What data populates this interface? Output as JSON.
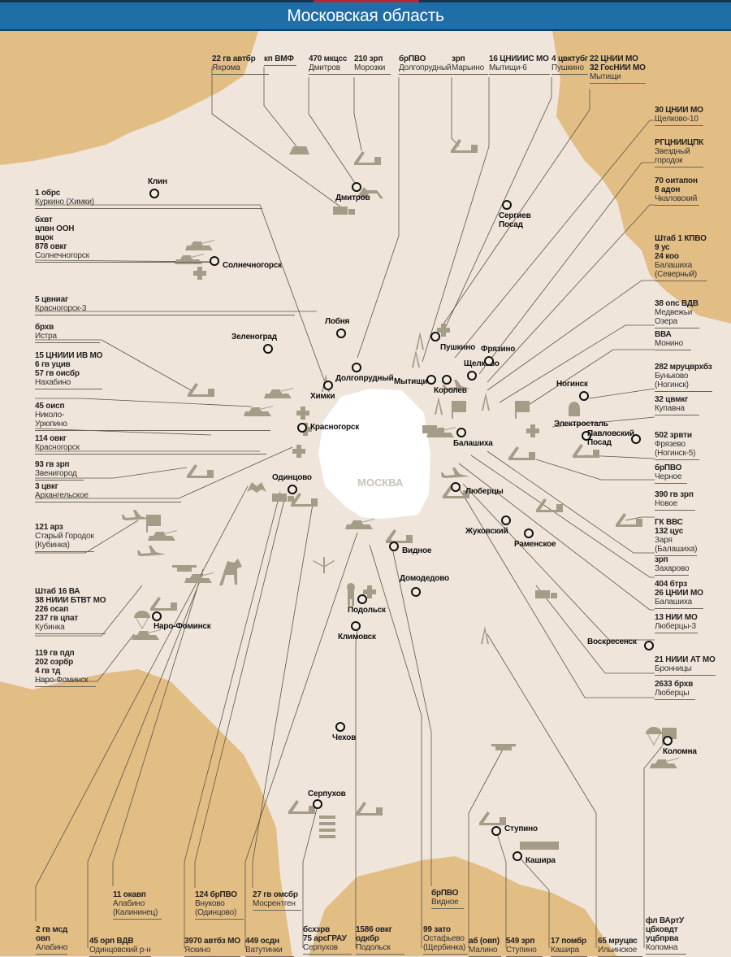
{
  "title": "Московская область",
  "center_label": "МОСКВА",
  "colors": {
    "title_bar": "#1f6ea8",
    "land": "#efe5da",
    "neighbor_region": "#e2bd84",
    "moscow": "#ffffff",
    "icon": "#a39c87"
  },
  "units": [
    {
      "lines": [
        {
          "t": "22 гв автбр",
          "b": true
        },
        {
          "t": "Яхрома"
        }
      ]
    },
    {
      "lines": [
        {
          "t": "кп ВМФ",
          "b": true
        }
      ]
    },
    {
      "lines": [
        {
          "t": "470 мкцсс",
          "b": true
        },
        {
          "t": "Дмитров"
        }
      ]
    },
    {
      "lines": [
        {
          "t": "210 зрп",
          "b": true
        },
        {
          "t": "Морозки"
        }
      ]
    },
    {
      "lines": [
        {
          "t": "брПВО",
          "b": true
        },
        {
          "t": "Долгопрудный"
        }
      ]
    },
    {
      "lines": [
        {
          "t": "зрп",
          "b": true
        },
        {
          "t": "Марьино"
        }
      ]
    },
    {
      "lines": [
        {
          "t": "16 ЦНИИИС МО",
          "b": true
        },
        {
          "t": "Мытищи-6"
        }
      ]
    },
    {
      "lines": [
        {
          "t": "4 цвктубг",
          "b": true
        },
        {
          "t": "Пушкино"
        }
      ]
    },
    {
      "lines": [
        {
          "t": "22 ЦНИИ МО",
          "b": true
        },
        {
          "t": "32 ГосНИИ МО",
          "b": true
        },
        {
          "t": "Мытищи"
        }
      ]
    },
    {
      "lines": [
        {
          "t": "30 ЦНИИ МО",
          "b": true
        },
        {
          "t": "Щелково-10"
        }
      ]
    },
    {
      "lines": [
        {
          "t": "РГЦНИИЦПК",
          "b": true
        },
        {
          "t": "Звездный"
        },
        {
          "t": "городок"
        }
      ]
    },
    {
      "lines": [
        {
          "t": "70 оитапон",
          "b": true
        },
        {
          "t": "8 адон",
          "b": true
        },
        {
          "t": "Чкаловский"
        }
      ]
    },
    {
      "lines": [
        {
          "t": "Штаб 1 КПВО",
          "b": true
        },
        {
          "t": "9 ус",
          "b": true
        },
        {
          "t": "24 коо",
          "b": true
        },
        {
          "t": "Балашиха"
        },
        {
          "t": "(Северный)"
        }
      ]
    },
    {
      "lines": [
        {
          "t": "38 опс ВДВ",
          "b": true
        },
        {
          "t": "Медвежьи"
        },
        {
          "t": "Озера"
        }
      ]
    },
    {
      "lines": [
        {
          "t": "ВВА",
          "b": true
        },
        {
          "t": "Монино"
        }
      ]
    },
    {
      "lines": [
        {
          "t": "282 мруцврхбз",
          "b": true
        },
        {
          "t": "Буньково"
        },
        {
          "t": "(Ногинск)"
        }
      ]
    },
    {
      "lines": [
        {
          "t": "32 цвмкг",
          "b": true
        },
        {
          "t": "Купавна"
        }
      ]
    },
    {
      "lines": [
        {
          "t": "502 зрвти",
          "b": true
        },
        {
          "t": "Фрязево"
        },
        {
          "t": "(Ногинск-5)"
        }
      ]
    },
    {
      "lines": [
        {
          "t": "брПВО",
          "b": true
        },
        {
          "t": "Черное"
        }
      ]
    },
    {
      "lines": [
        {
          "t": "390 гв зрп",
          "b": true
        },
        {
          "t": "Новое"
        }
      ]
    },
    {
      "lines": [
        {
          "t": "ГК ВВС",
          "b": true
        },
        {
          "t": "132 цус",
          "b": true
        },
        {
          "t": "Заря"
        },
        {
          "t": "(Балашиха)"
        }
      ]
    },
    {
      "lines": [
        {
          "t": "зрп",
          "b": true
        },
        {
          "t": "Захарово"
        }
      ]
    },
    {
      "lines": [
        {
          "t": "404 бтрз",
          "b": true
        },
        {
          "t": "26 ЦНИИ МО",
          "b": true
        },
        {
          "t": "Балашиха"
        }
      ]
    },
    {
      "lines": [
        {
          "t": "13 НИИ МО",
          "b": true
        },
        {
          "t": "Люберцы-3"
        }
      ]
    },
    {
      "lines": [
        {
          "t": "21 НИИИ АТ МО",
          "b": true
        },
        {
          "t": "Бронницы"
        }
      ]
    },
    {
      "lines": [
        {
          "t": "2633 брхв",
          "b": true
        },
        {
          "t": "Люберцы"
        }
      ]
    },
    {
      "lines": [
        {
          "t": "1 обрс",
          "b": true
        },
        {
          "t": "Куркино (Химки)"
        }
      ]
    },
    {
      "lines": [
        {
          "t": "бхвт",
          "b": true
        },
        {
          "t": "цпвн ООН",
          "b": true
        },
        {
          "t": "вцок",
          "b": true
        },
        {
          "t": "878 овкг",
          "b": true
        },
        {
          "t": "Солнечногорск"
        }
      ]
    },
    {
      "lines": [
        {
          "t": "5 цвниаг",
          "b": true
        },
        {
          "t": "Красногорск-3"
        }
      ]
    },
    {
      "lines": [
        {
          "t": "брхв",
          "b": true
        },
        {
          "t": "Истра"
        }
      ]
    },
    {
      "lines": [
        {
          "t": "15 ЦНИИИ ИВ МО",
          "b": true
        },
        {
          "t": "6 гв уцив",
          "b": true
        },
        {
          "t": "57 гв оисбр",
          "b": true
        },
        {
          "t": "Нахабино"
        }
      ]
    },
    {
      "lines": [
        {
          "t": "45 оисп",
          "b": true
        },
        {
          "t": "Николо-"
        },
        {
          "t": "Урюпино"
        }
      ]
    },
    {
      "lines": [
        {
          "t": "114 овкг",
          "b": true
        },
        {
          "t": "Красногорск"
        }
      ]
    },
    {
      "lines": [
        {
          "t": "93 гв зрп",
          "b": true
        },
        {
          "t": "Звенигород"
        }
      ]
    },
    {
      "lines": [
        {
          "t": "3 цвкг",
          "b": true
        },
        {
          "t": "Архангельское"
        }
      ]
    },
    {
      "lines": [
        {
          "t": "121 арз",
          "b": true
        },
        {
          "t": "Старый Городок"
        },
        {
          "t": "(Кубинка)"
        }
      ]
    },
    {
      "lines": [
        {
          "t": "Штаб 16 ВА",
          "b": true
        },
        {
          "t": "38 НИИИ БТВТ МО",
          "b": true
        },
        {
          "t": "226 осап",
          "b": true
        },
        {
          "t": "237 гв цпат",
          "b": true
        },
        {
          "t": "Кубинка"
        }
      ]
    },
    {
      "lines": [
        {
          "t": "119 гв пдп",
          "b": true
        },
        {
          "t": "202 озрбр",
          "b": true
        },
        {
          "t": "4 гв тд",
          "b": true
        },
        {
          "t": "Наро-Фоминск"
        }
      ]
    },
    {
      "lines": [
        {
          "t": "2 гв мсд",
          "b": true
        },
        {
          "t": "овп",
          "b": true
        },
        {
          "t": "Алабино"
        }
      ]
    },
    {
      "lines": [
        {
          "t": "11 окавп",
          "b": true
        },
        {
          "t": "Алабино"
        },
        {
          "t": "(Калининец)"
        }
      ]
    },
    {
      "lines": [
        {
          "t": "45 орп ВДВ",
          "b": true
        },
        {
          "t": "Одинцовский р-н"
        }
      ]
    },
    {
      "lines": [
        {
          "t": "124 брПВО",
          "b": true
        },
        {
          "t": "Внуково"
        },
        {
          "t": "(Одинцово)"
        }
      ]
    },
    {
      "lines": [
        {
          "t": "3970 автбз МО",
          "b": true
        },
        {
          "t": "Яскино"
        }
      ]
    },
    {
      "lines": [
        {
          "t": "27 гв омсбр",
          "b": true
        },
        {
          "t": "Мосрентген"
        }
      ]
    },
    {
      "lines": [
        {
          "t": "449 осдн",
          "b": true
        },
        {
          "t": "Ватутинки"
        }
      ]
    },
    {
      "lines": [
        {
          "t": "бсхзрв",
          "b": true
        },
        {
          "t": "75 арсГРАУ",
          "b": true
        },
        {
          "t": "Серпухов"
        }
      ]
    },
    {
      "lines": [
        {
          "t": "1586 овкг",
          "b": true
        },
        {
          "t": "одкбр",
          "b": true
        },
        {
          "t": "Подольск"
        }
      ]
    },
    {
      "lines": [
        {
          "t": "брПВО",
          "b": true
        },
        {
          "t": "Видное"
        }
      ]
    },
    {
      "lines": [
        {
          "t": "99 зато",
          "b": true
        },
        {
          "t": "Остафьево"
        },
        {
          "t": "(Щербинка)"
        }
      ]
    },
    {
      "lines": [
        {
          "t": "аб (овп)",
          "b": true
        },
        {
          "t": "Малино"
        }
      ]
    },
    {
      "lines": [
        {
          "t": "549 зрп",
          "b": true
        },
        {
          "t": "Ступино"
        }
      ]
    },
    {
      "lines": [
        {
          "t": "17 помбр",
          "b": true
        },
        {
          "t": "Кашира"
        }
      ]
    },
    {
      "lines": [
        {
          "t": "65 мруцвс",
          "b": true
        },
        {
          "t": "Ильинское"
        }
      ]
    },
    {
      "lines": [
        {
          "t": "фл ВАртУ",
          "b": true
        },
        {
          "t": "цбховдт",
          "b": true
        },
        {
          "t": "уцбпрва",
          "b": true
        },
        {
          "t": "Коломна"
        }
      ]
    }
  ],
  "cities": [
    "Клин",
    "Дмитров",
    "Сергиев Посад",
    "Солнечногорск",
    "Лобня",
    "Зеленоград",
    "Химки",
    "Долгопрудный",
    "Мытищи",
    "Королев",
    "Пушкино",
    "Щелково",
    "Фрязино",
    "Красногорск",
    "Балашиха",
    "Одинцово",
    "Люберцы",
    "Видное",
    "Жуковский",
    "Раменское",
    "Домодедово",
    "Подольск",
    "Климовск",
    "Наро-Фоминск",
    "Ногинск",
    "Электросталь",
    "Павловский Посад",
    "Воскресенск",
    "Чехов",
    "Серпухов",
    "Ступино",
    "Кашира",
    "Коломна"
  ],
  "icons": [
    "missile-launcher-icon",
    "truck-icon",
    "tank-icon",
    "medical-cross-icon",
    "aircraft-icon",
    "helicopter-icon",
    "radio-tower-icon",
    "parachute-icon",
    "flag-icon",
    "dog-icon",
    "horse-rider-icon",
    "soldier-icon",
    "bunker-icon",
    "fireworks-icon",
    "bat-emblem-icon",
    "shells-icon",
    "gas-mask-icon"
  ]
}
